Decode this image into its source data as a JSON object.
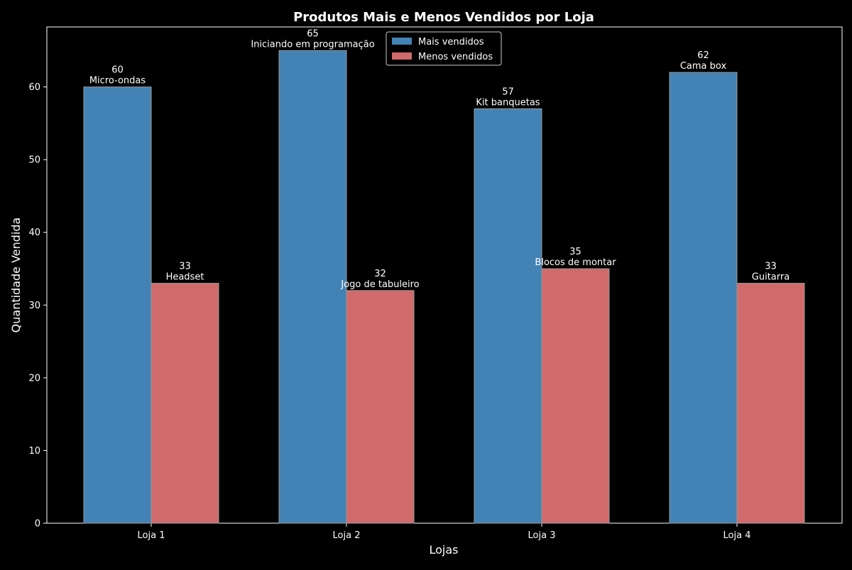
{
  "chart_data": {
    "type": "bar",
    "title": "Produtos Mais e Menos Vendidos por Loja",
    "xlabel": "Lojas",
    "ylabel": "Quantidade Vendida",
    "categories": [
      "Loja 1",
      "Loja 2",
      "Loja 3",
      "Loja 4"
    ],
    "ylim": [
      0,
      68.25
    ],
    "yticks": [
      0,
      10,
      20,
      30,
      40,
      50,
      60
    ],
    "grid": false,
    "legend_position": "top-center",
    "series": [
      {
        "name": "Mais vendidos",
        "color": "#4a90c8",
        "values": [
          60,
          65,
          57,
          62
        ],
        "products": [
          "Micro-ondas",
          "Iniciando em programação",
          "Kit banquetas",
          "Cama box"
        ]
      },
      {
        "name": "Menos vendidos",
        "color": "#e87777",
        "values": [
          33,
          32,
          35,
          33
        ],
        "products": [
          "Headset",
          "Jogo de tabuleiro",
          "Blocos de montar",
          "Guitarra"
        ]
      }
    ],
    "colors": {
      "background": "#000000",
      "text": "#ffffff",
      "axis": "#ffffff",
      "bar_edge": "#9a9a9a"
    }
  }
}
